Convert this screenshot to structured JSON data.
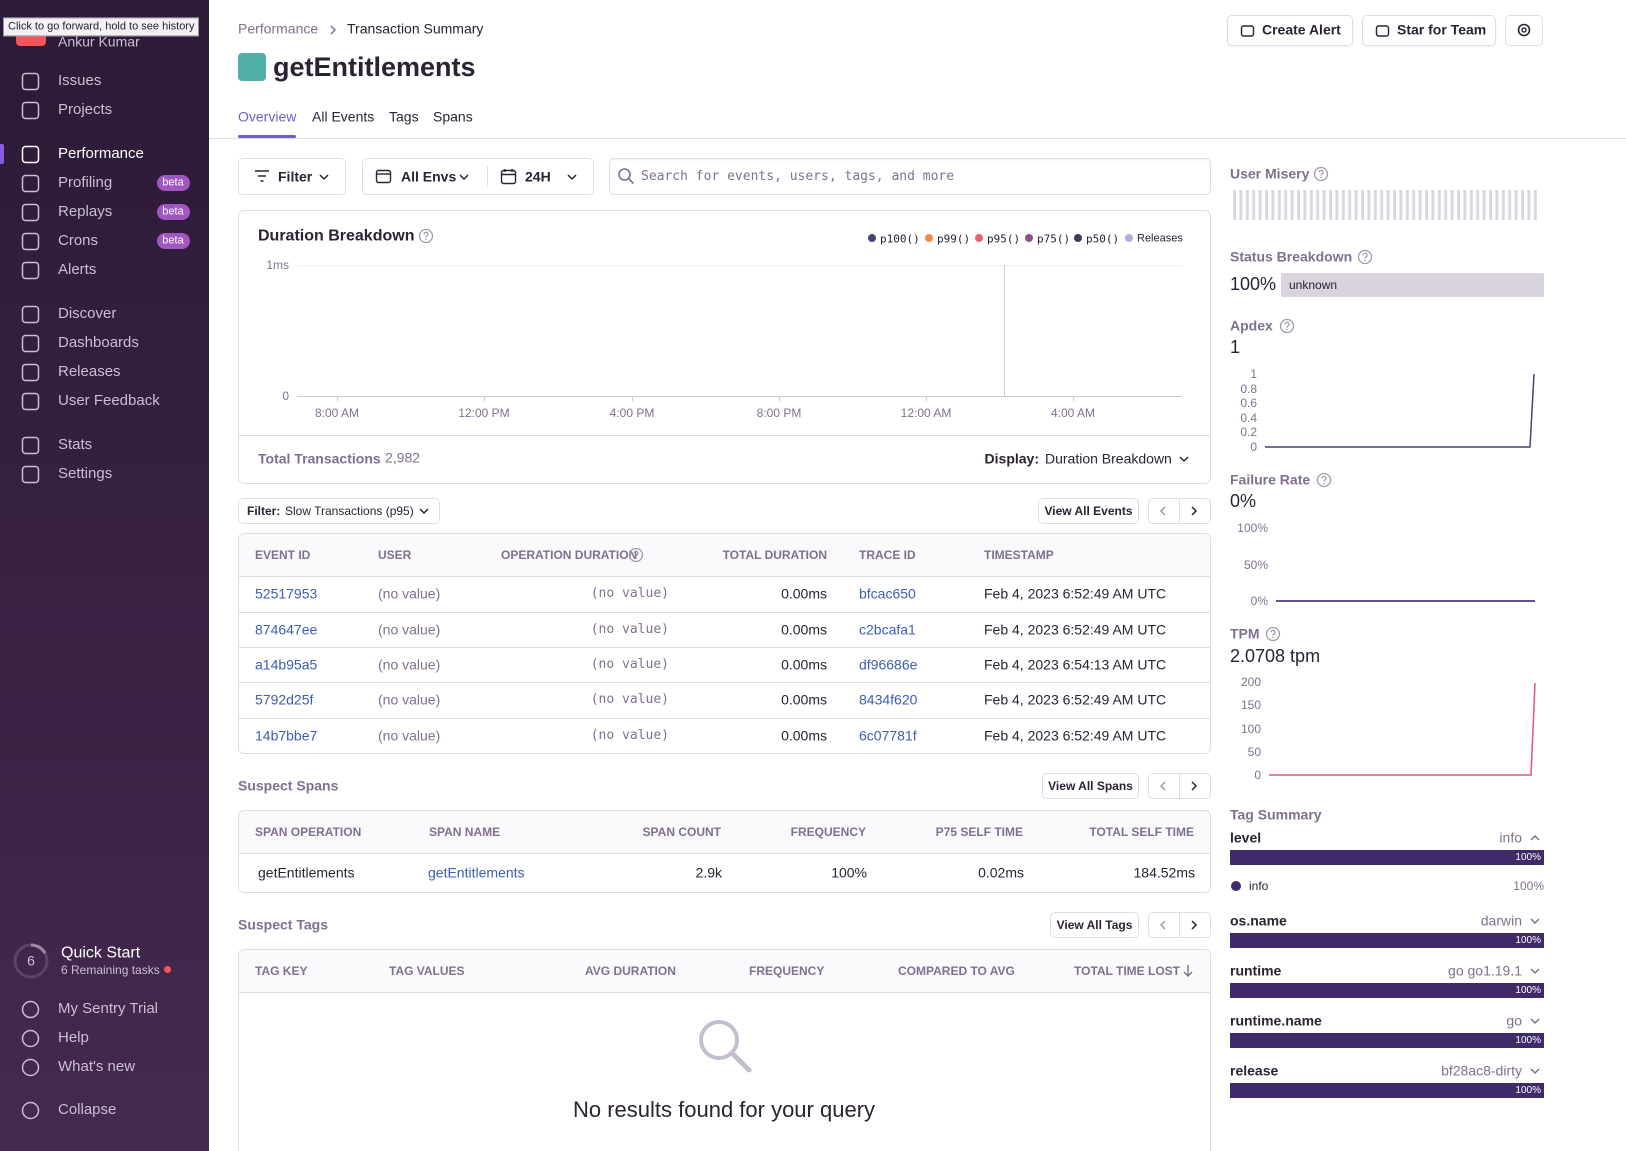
{
  "tooltip": "Click to go forward, hold to see history",
  "sidebar": {
    "user": "Ankur Kumar",
    "nav": [
      {
        "label": "Issues"
      },
      {
        "label": "Projects"
      },
      {
        "label": "Performance"
      },
      {
        "label": "Profiling",
        "badge": "beta"
      },
      {
        "label": "Replays",
        "badge": "beta"
      },
      {
        "label": "Crons",
        "badge": "beta"
      },
      {
        "label": "Alerts"
      },
      {
        "label": "Discover"
      },
      {
        "label": "Dashboards"
      },
      {
        "label": "Releases"
      },
      {
        "label": "User Feedback"
      },
      {
        "label": "Stats"
      },
      {
        "label": "Settings"
      }
    ],
    "quick_start": {
      "count": "6",
      "title": "Quick Start",
      "subtitle": "6 Remaining tasks"
    },
    "footer": [
      "My Sentry Trial",
      "Help",
      "What's new",
      "Collapse"
    ]
  },
  "header": {
    "breadcrumbs": [
      "Performance",
      "Transaction Summary"
    ],
    "title": "getEntitlements",
    "actions": [
      "Create Alert",
      "Star for Team"
    ],
    "tabs": [
      "Overview",
      "All Events",
      "Tags",
      "Spans"
    ]
  },
  "filters": {
    "filter": "Filter",
    "environment": "All Envs",
    "period": "24H",
    "search_placeholder": "Search for events, users, tags, and more"
  },
  "duration_chart": {
    "title": "Duration Breakdown",
    "legend": [
      "p100()",
      "p99()",
      "p95()",
      "p75()",
      "p50()",
      "Releases"
    ],
    "y_labels": [
      "1ms",
      "0"
    ],
    "x_labels": [
      "8:00 AM",
      "12:00 PM",
      "4:00 PM",
      "8:00 PM",
      "12:00 AM",
      "4:00 AM"
    ]
  },
  "totals": {
    "label": "Total Transactions",
    "value": "2,982",
    "display_label": "Display:",
    "display_value": "Duration Breakdown"
  },
  "events": {
    "filter_label": "Filter:",
    "filter_value": "Slow Transactions (p95)",
    "view_all": "View All Events",
    "columns": [
      "EVENT ID",
      "USER",
      "OPERATION DURATION",
      "TOTAL DURATION",
      "TRACE ID",
      "TIMESTAMP"
    ],
    "rows": [
      [
        "52517953",
        "(no value)",
        "(no value)",
        "0.00ms",
        "bfcac650",
        "Feb 4, 2023 6:52:49 AM UTC"
      ],
      [
        "874647ee",
        "(no value)",
        "(no value)",
        "0.00ms",
        "c2bcafa1",
        "Feb 4, 2023 6:52:49 AM UTC"
      ],
      [
        "a14b95a5",
        "(no value)",
        "(no value)",
        "0.00ms",
        "df96686e",
        "Feb 4, 2023 6:54:13 AM UTC"
      ],
      [
        "5792d25f",
        "(no value)",
        "(no value)",
        "0.00ms",
        "8434f620",
        "Feb 4, 2023 6:52:49 AM UTC"
      ],
      [
        "14b7bbe7",
        "(no value)",
        "(no value)",
        "0.00ms",
        "6c07781f",
        "Feb 4, 2023 6:52:49 AM UTC"
      ]
    ]
  },
  "suspect_spans": {
    "title": "Suspect Spans",
    "view_all": "View All Spans",
    "columns": [
      "SPAN OPERATION",
      "SPAN NAME",
      "SPAN COUNT",
      "FREQUENCY",
      "P75 SELF TIME",
      "TOTAL SELF TIME"
    ],
    "rows": [
      [
        "getEntitlements",
        "getEntitlements",
        "2.9k",
        "100%",
        "0.02ms",
        "184.52ms"
      ]
    ]
  },
  "suspect_tags": {
    "title": "Suspect Tags",
    "view_all": "View All Tags",
    "columns": [
      "TAG KEY",
      "TAG VALUES",
      "AVG DURATION",
      "FREQUENCY",
      "COMPARED TO AVG",
      "TOTAL TIME LOST"
    ],
    "empty_message": "No results found for your query"
  },
  "side_panel": {
    "user_misery": {
      "title": "User Misery"
    },
    "status_breakdown": {
      "title": "Status Breakdown",
      "percent": "100%",
      "label": "unknown"
    },
    "apdex": {
      "title": "Apdex",
      "value": "1",
      "ticks": [
        "1",
        "0.8",
        "0.6",
        "0.4",
        "0.2",
        "0"
      ]
    },
    "failure_rate": {
      "title": "Failure Rate",
      "value": "0%",
      "ticks": [
        "100%",
        "50%",
        "0%"
      ]
    },
    "tpm": {
      "title": "TPM",
      "value": "2.0708 tpm",
      "ticks": [
        "200",
        "150",
        "100",
        "50",
        "0"
      ]
    },
    "tag_summary": {
      "title": "Tag Summary",
      "tags": [
        {
          "name": "level",
          "value": "info",
          "percent": "100%"
        },
        {
          "name": "os.name",
          "value": "darwin",
          "percent": "100%"
        },
        {
          "name": "runtime",
          "value": "go go1.19.1",
          "percent": "100%"
        },
        {
          "name": "runtime.name",
          "value": "go",
          "percent": "100%"
        },
        {
          "name": "release",
          "value": "bf28ac8-dirty",
          "percent": "100%"
        }
      ],
      "level_breakdown": {
        "name": "info",
        "percent": "100%"
      }
    }
  }
}
